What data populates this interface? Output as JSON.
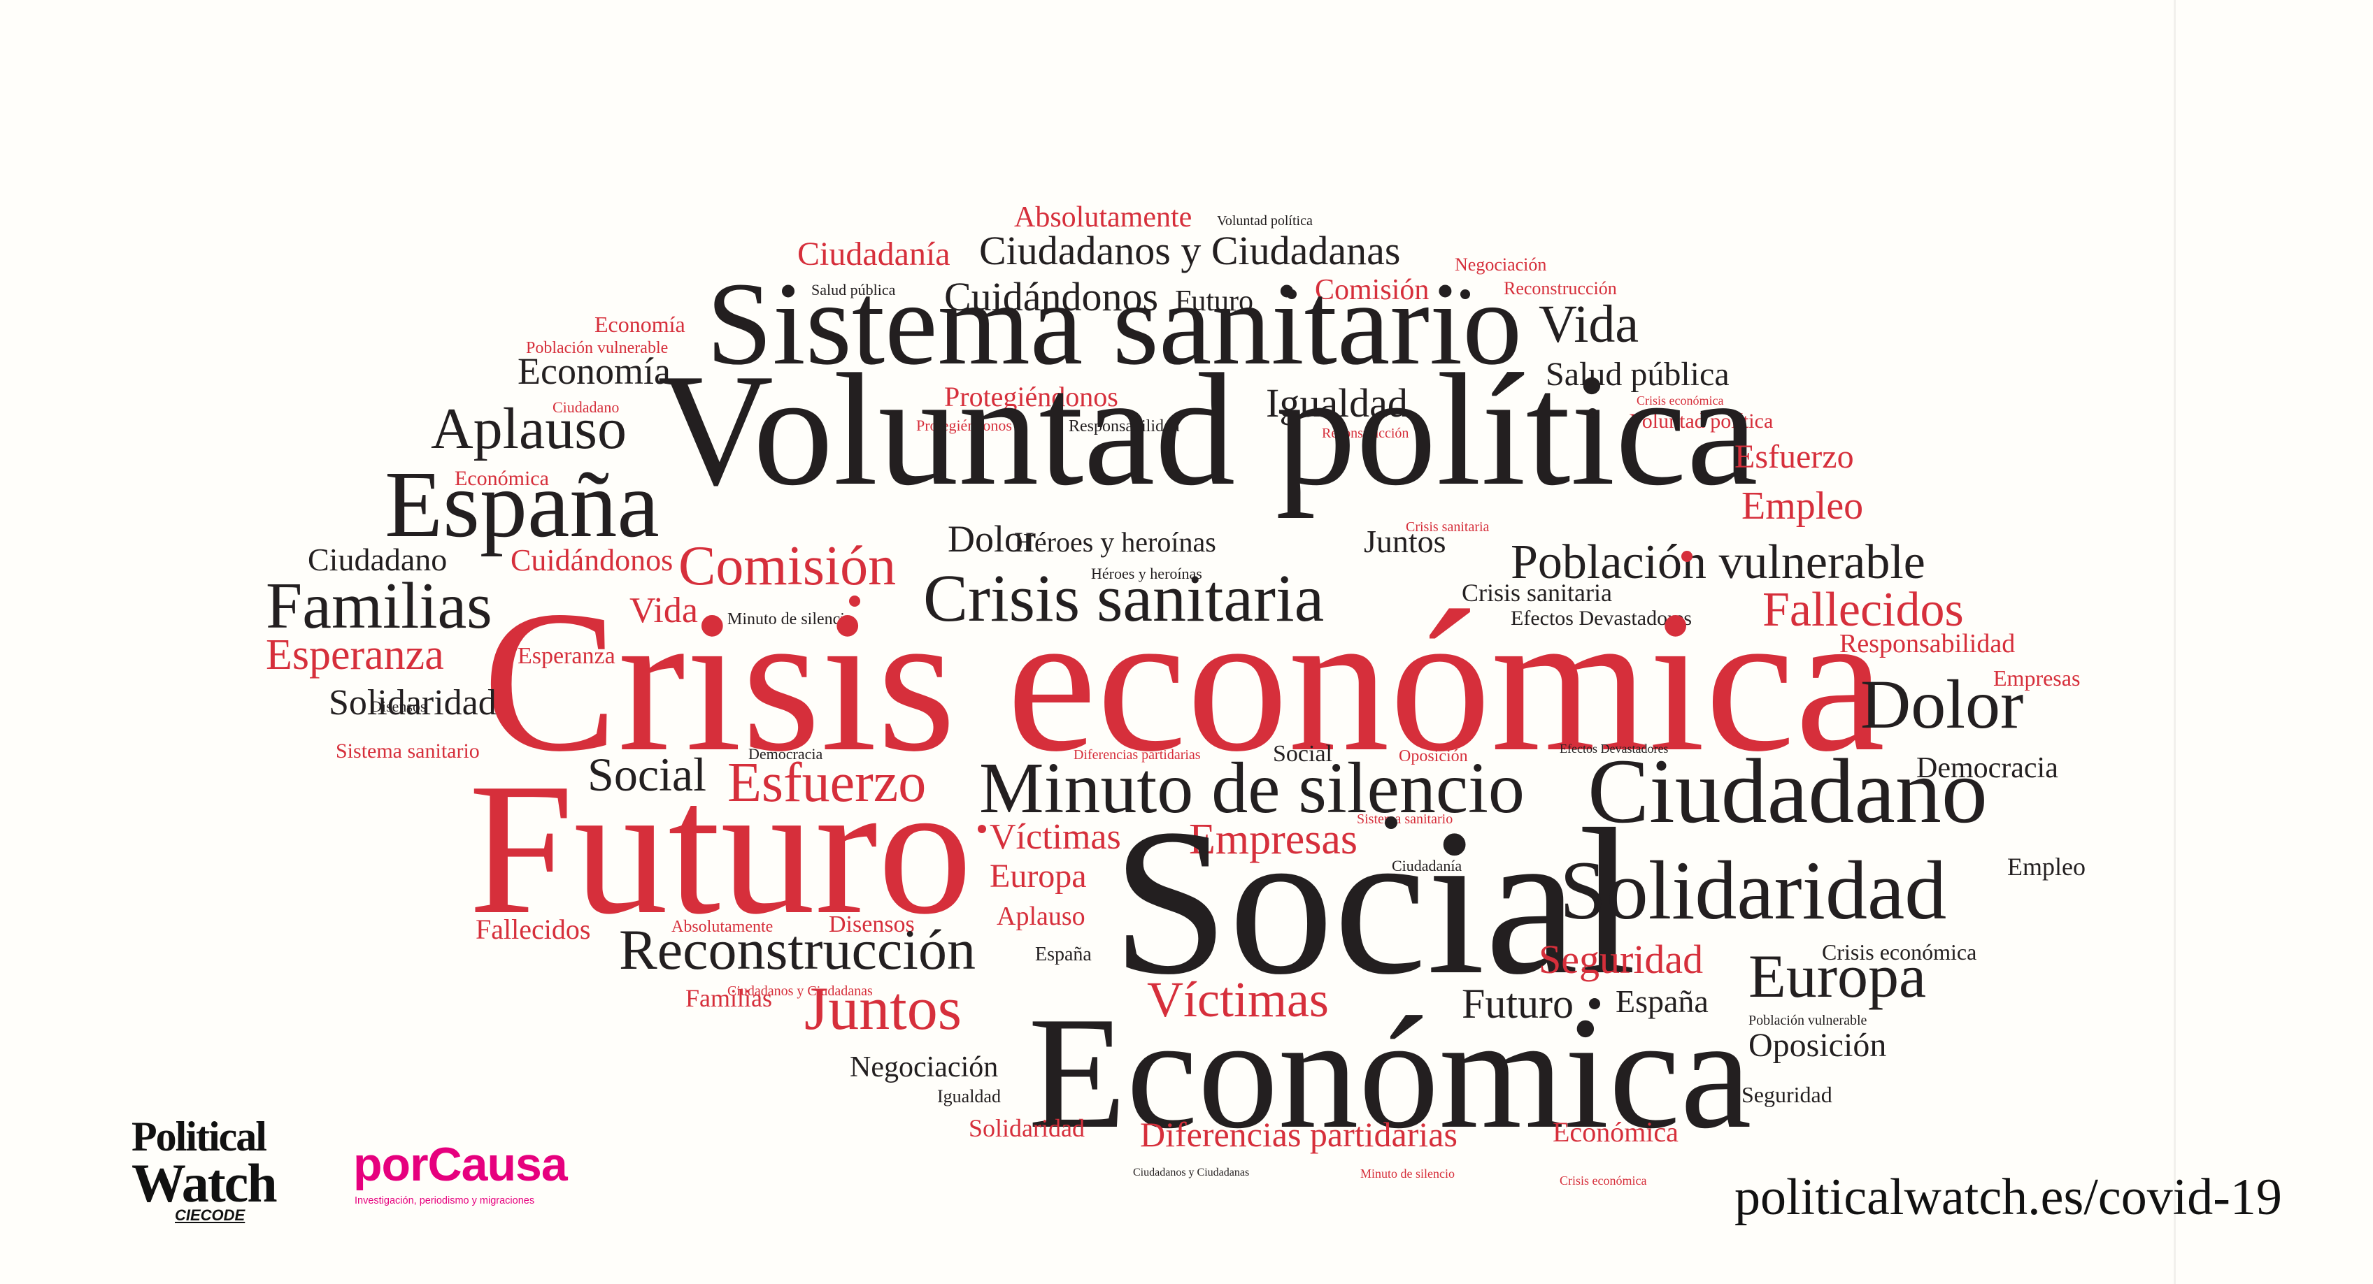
{
  "word_cloud": {
    "colors": {
      "dark": "#231f20",
      "red": "#d62f3b"
    },
    "words": [
      {
        "text": "Absolutamente",
        "color": "red"
      },
      {
        "text": "Voluntad política",
        "color": "dark"
      },
      {
        "text": "Ciudadanía",
        "color": "red"
      },
      {
        "text": "Ciudadanos y Ciudadanas",
        "color": "dark"
      },
      {
        "text": "Negociación",
        "color": "red"
      },
      {
        "text": "Salud pública",
        "color": "dark"
      },
      {
        "text": "Cuidándonos",
        "color": "dark"
      },
      {
        "text": "Futuro",
        "color": "dark"
      },
      {
        "text": "Comisión",
        "color": "red"
      },
      {
        "text": "Reconstrucción",
        "color": "red"
      },
      {
        "text": "Economía",
        "color": "red"
      },
      {
        "text": "Sistema sanitario",
        "color": "dark"
      },
      {
        "text": "Vida",
        "color": "dark"
      },
      {
        "text": "Población vulnerable",
        "color": "red"
      },
      {
        "text": "Economía",
        "color": "dark"
      },
      {
        "text": "Salud pública",
        "color": "dark"
      },
      {
        "text": "Protegiéndonos",
        "color": "red"
      },
      {
        "text": "Igualdad",
        "color": "dark"
      },
      {
        "text": "Crisis económica",
        "color": "red"
      },
      {
        "text": "Ciudadano",
        "color": "red"
      },
      {
        "text": "Aplauso",
        "color": "dark"
      },
      {
        "text": "Protegiéndonos",
        "color": "red"
      },
      {
        "text": "Responsabilidad",
        "color": "dark"
      },
      {
        "text": "Reconstrucción",
        "color": "red"
      },
      {
        "text": "Voluntad política",
        "color": "red"
      },
      {
        "text": "Voluntad política",
        "color": "dark"
      },
      {
        "text": "Económica",
        "color": "red"
      },
      {
        "text": "Esfuerzo",
        "color": "red"
      },
      {
        "text": "España",
        "color": "dark"
      },
      {
        "text": "Empleo",
        "color": "red"
      },
      {
        "text": "Crisis sanitaria",
        "color": "red"
      },
      {
        "text": "Dolor",
        "color": "dark"
      },
      {
        "text": "Héroes y heroínas",
        "color": "dark"
      },
      {
        "text": "Juntos",
        "color": "dark"
      },
      {
        "text": "Ciudadano",
        "color": "dark"
      },
      {
        "text": "Cuidándonos",
        "color": "red"
      },
      {
        "text": "Comisión",
        "color": "red"
      },
      {
        "text": "Población vulnerable",
        "color": "dark"
      },
      {
        "text": "Héroes y heroínas",
        "color": "dark"
      },
      {
        "text": "Familias",
        "color": "dark"
      },
      {
        "text": "Crisis sanitaria",
        "color": "dark"
      },
      {
        "text": "Crisis sanitaria",
        "color": "dark"
      },
      {
        "text": "Vida",
        "color": "red"
      },
      {
        "text": "Minuto de silencio",
        "color": "dark"
      },
      {
        "text": "Efectos Devastadores",
        "color": "dark"
      },
      {
        "text": "Fallecidos",
        "color": "red"
      },
      {
        "text": "Esperanza",
        "color": "red"
      },
      {
        "text": "Esperanza",
        "color": "red"
      },
      {
        "text": "Responsabilidad",
        "color": "red"
      },
      {
        "text": "Crisis económica",
        "color": "red"
      },
      {
        "text": "Empresas",
        "color": "red"
      },
      {
        "text": "Solidaridad",
        "color": "dark"
      },
      {
        "text": "Disensos",
        "color": "dark"
      },
      {
        "text": "Dolor",
        "color": "dark"
      },
      {
        "text": "Sistema sanitario",
        "color": "red"
      },
      {
        "text": "Democracia",
        "color": "dark"
      },
      {
        "text": "Diferencias partidarias",
        "color": "red"
      },
      {
        "text": "Social",
        "color": "dark"
      },
      {
        "text": "Oposición",
        "color": "red"
      },
      {
        "text": "Efectos Devastadores",
        "color": "dark"
      },
      {
        "text": "Democracia",
        "color": "dark"
      },
      {
        "text": "Social",
        "color": "dark"
      },
      {
        "text": "Esfuerzo",
        "color": "red"
      },
      {
        "text": "Minuto de silencio",
        "color": "dark"
      },
      {
        "text": "Ciudadano",
        "color": "dark"
      },
      {
        "text": "Futuro",
        "color": "red"
      },
      {
        "text": "Víctimas",
        "color": "red"
      },
      {
        "text": "Empresas",
        "color": "red"
      },
      {
        "text": "Sistema sanitario",
        "color": "red"
      },
      {
        "text": "Europa",
        "color": "red"
      },
      {
        "text": "Ciudadanía",
        "color": "dark"
      },
      {
        "text": "Empleo",
        "color": "dark"
      },
      {
        "text": "Social",
        "color": "dark"
      },
      {
        "text": "Solidaridad",
        "color": "dark"
      },
      {
        "text": "Fallecidos",
        "color": "red"
      },
      {
        "text": "Absolutamente",
        "color": "red"
      },
      {
        "text": "Disensos",
        "color": "red"
      },
      {
        "text": "Aplauso",
        "color": "red"
      },
      {
        "text": "Reconstrucción",
        "color": "dark"
      },
      {
        "text": "España",
        "color": "dark"
      },
      {
        "text": "Seguridad",
        "color": "red"
      },
      {
        "text": "Crisis económica",
        "color": "dark"
      },
      {
        "text": "Ciudadanos y Ciudadanas",
        "color": "red"
      },
      {
        "text": "Europa",
        "color": "dark"
      },
      {
        "text": "Familias",
        "color": "red"
      },
      {
        "text": "Juntos",
        "color": "red"
      },
      {
        "text": "Víctimas",
        "color": "red"
      },
      {
        "text": "Futuro",
        "color": "dark"
      },
      {
        "text": "España",
        "color": "dark"
      },
      {
        "text": "Población vulnerable",
        "color": "dark"
      },
      {
        "text": "Negociación",
        "color": "dark"
      },
      {
        "text": "Económica",
        "color": "dark"
      },
      {
        "text": "Oposición",
        "color": "dark"
      },
      {
        "text": "Igualdad",
        "color": "dark"
      },
      {
        "text": "Seguridad",
        "color": "dark"
      },
      {
        "text": "Solidaridad",
        "color": "red"
      },
      {
        "text": "Diferencias partidarias",
        "color": "red"
      },
      {
        "text": "Económica",
        "color": "red"
      },
      {
        "text": "Ciudadanos y Ciudadanas",
        "color": "dark"
      },
      {
        "text": "Minuto de silencio",
        "color": "red"
      },
      {
        "text": "Crisis económica",
        "color": "red"
      }
    ]
  },
  "logos": {
    "political_watch": {
      "line1": "Political",
      "line2": "Watch",
      "sub": "CIECODE"
    },
    "porcausa": {
      "name": "porCausa",
      "tagline": "Investigación, periodismo y migraciones"
    }
  },
  "footer": {
    "url": "politicalwatch.es/covid-19"
  }
}
